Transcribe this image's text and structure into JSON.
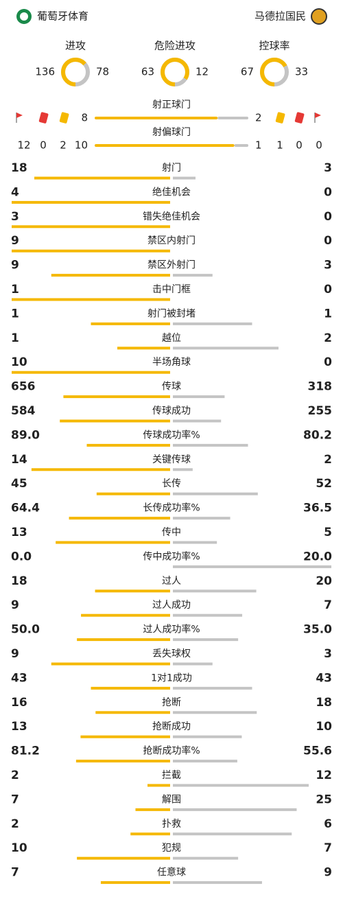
{
  "header": {
    "home": "葡萄牙体育",
    "away": "马德拉国民"
  },
  "rings": [
    {
      "label": "进攻",
      "home": 136,
      "away": 78
    },
    {
      "label": "危险进攻",
      "home": 63,
      "away": 12
    },
    {
      "label": "控球率",
      "home": 67,
      "away": 33
    }
  ],
  "shots": [
    {
      "label": "射正球门",
      "home": 8,
      "away": 2
    },
    {
      "label": "射偏球门",
      "home": 10,
      "away": 1
    }
  ],
  "discipline": {
    "home": {
      "corners": 12,
      "red": 0,
      "yellow": 2
    },
    "away": {
      "yellow": 1,
      "red": 0,
      "corners": 0
    }
  },
  "stats": [
    {
      "label": "射门",
      "home": 18,
      "away": 3
    },
    {
      "label": "绝佳机会",
      "home": 4,
      "away": 0
    },
    {
      "label": "错失绝佳机会",
      "home": 3,
      "away": 0
    },
    {
      "label": "禁区内射门",
      "home": 9,
      "away": 0
    },
    {
      "label": "禁区外射门",
      "home": 9,
      "away": 3
    },
    {
      "label": "击中门框",
      "home": 1,
      "away": 0
    },
    {
      "label": "射门被封堵",
      "home": 1,
      "away": 1
    },
    {
      "label": "越位",
      "home": 1,
      "away": 2
    },
    {
      "label": "半场角球",
      "home": 10,
      "away": 0
    },
    {
      "label": "传球",
      "home": 656,
      "away": 318
    },
    {
      "label": "传球成功",
      "home": 584,
      "away": 255
    },
    {
      "label": "传球成功率%",
      "home": "89.0",
      "away": 80.2
    },
    {
      "label": "关键传球",
      "home": 14,
      "away": 2
    },
    {
      "label": "长传",
      "home": 45,
      "away": 52
    },
    {
      "label": "长传成功率%",
      "home": 64.4,
      "away": 36.5
    },
    {
      "label": "传中",
      "home": 13,
      "away": 5
    },
    {
      "label": "传中成功率%",
      "home": "0.0",
      "away": "20.0"
    },
    {
      "label": "过人",
      "home": 18,
      "away": 20
    },
    {
      "label": "过人成功",
      "home": 9,
      "away": 7
    },
    {
      "label": "过人成功率%",
      "home": "50.0",
      "away": "35.0"
    },
    {
      "label": "丢失球权",
      "home": 9,
      "away": 3
    },
    {
      "label": "1对1成功",
      "home": 43,
      "away": 43
    },
    {
      "label": "抢断",
      "home": 16,
      "away": 18
    },
    {
      "label": "抢断成功",
      "home": 13,
      "away": 10
    },
    {
      "label": "抢断成功率%",
      "home": 81.2,
      "away": 55.6
    },
    {
      "label": "拦截",
      "home": 2,
      "away": 12
    },
    {
      "label": "解围",
      "home": 7,
      "away": 25
    },
    {
      "label": "扑救",
      "home": 2,
      "away": 6
    },
    {
      "label": "犯规",
      "home": 10,
      "away": 7
    },
    {
      "label": "任意球",
      "home": 7,
      "away": 9
    }
  ]
}
